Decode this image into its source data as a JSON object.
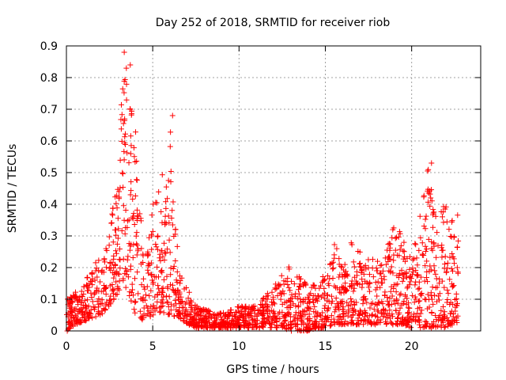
{
  "chart_data": {
    "type": "scatter",
    "title": "Day 252 of 2018, SRMTID for receiver riob",
    "xlabel": "GPS time / hours",
    "ylabel": "SRMTID / TECUs",
    "xlim": [
      0,
      24
    ],
    "ylim": [
      0,
      0.9
    ],
    "x_ticks": [
      0,
      5,
      10,
      15,
      20
    ],
    "x_tick_labels": [
      "0",
      "5",
      "10",
      "15",
      "20"
    ],
    "y_ticks": [
      0,
      0.1,
      0.2,
      0.3,
      0.4,
      0.5,
      0.6,
      0.7,
      0.8,
      0.9
    ],
    "y_tick_labels": [
      "0",
      "0.1",
      "0.2",
      "0.3",
      "0.4",
      "0.5",
      "0.6",
      "0.7",
      "0.8",
      "0.9"
    ],
    "grid": true,
    "marker": "+",
    "color": "#ff0000",
    "envelope": {
      "x": [
        0.0,
        0.5,
        1.0,
        1.5,
        2.0,
        2.5,
        3.0,
        3.3,
        3.6,
        4.0,
        4.5,
        5.0,
        5.5,
        6.0,
        6.5,
        7.0,
        7.5,
        8.0,
        9.0,
        10.0,
        11.0,
        12.0,
        12.5,
        13.0,
        13.5,
        14.0,
        14.5,
        15.0,
        15.5,
        16.0,
        16.5,
        17.0,
        17.5,
        18.0,
        18.5,
        19.0,
        19.5,
        20.0,
        20.5,
        21.0,
        21.5,
        22.0,
        22.5,
        22.7
      ],
      "y_max": [
        0.1,
        0.12,
        0.16,
        0.2,
        0.24,
        0.3,
        0.55,
        0.88,
        0.84,
        0.65,
        0.2,
        0.4,
        0.48,
        0.68,
        0.2,
        0.14,
        0.08,
        0.07,
        0.06,
        0.08,
        0.08,
        0.15,
        0.18,
        0.21,
        0.18,
        0.15,
        0.16,
        0.18,
        0.28,
        0.22,
        0.28,
        0.28,
        0.24,
        0.22,
        0.25,
        0.34,
        0.3,
        0.22,
        0.38,
        0.53,
        0.35,
        0.42,
        0.38,
        0.38
      ],
      "y_min": [
        0.0,
        0.02,
        0.03,
        0.04,
        0.05,
        0.08,
        0.12,
        0.15,
        0.12,
        0.05,
        0.03,
        0.05,
        0.06,
        0.05,
        0.04,
        0.02,
        0.01,
        0.01,
        0.01,
        0.01,
        0.01,
        0.01,
        0.01,
        0.0,
        0.0,
        0.0,
        0.01,
        0.01,
        0.02,
        0.02,
        0.02,
        0.02,
        0.02,
        0.02,
        0.02,
        0.02,
        0.02,
        0.01,
        0.01,
        0.01,
        0.01,
        0.01,
        0.02,
        0.03
      ]
    },
    "notable_points": [
      {
        "x": 3.35,
        "y": 0.88
      },
      {
        "x": 3.7,
        "y": 0.84
      },
      {
        "x": 6.15,
        "y": 0.68
      },
      {
        "x": 21.15,
        "y": 0.53
      },
      {
        "x": 0.05,
        "y": 0.0
      }
    ]
  }
}
